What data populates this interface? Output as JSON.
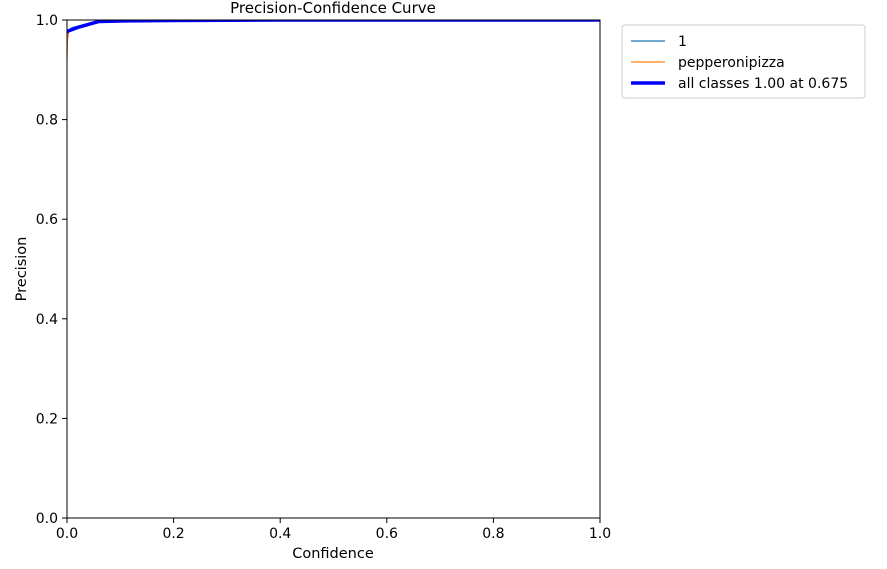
{
  "chart_data": {
    "type": "line",
    "title": "Precision-Confidence Curve",
    "xlabel": "Confidence",
    "ylabel": "Precision",
    "xlim": [
      0.0,
      1.0
    ],
    "ylim": [
      0.0,
      1.0
    ],
    "xticks": [
      "0.0",
      "0.2",
      "0.4",
      "0.6",
      "0.8",
      "1.0"
    ],
    "yticks": [
      "0.0",
      "0.2",
      "0.4",
      "0.6",
      "0.8",
      "1.0"
    ],
    "grid": false,
    "legend_position": "outside-top-right",
    "series": [
      {
        "name": "1",
        "color": "#1f77b4",
        "x": [
          0.0,
          0.002,
          0.01,
          0.05,
          0.06,
          0.1,
          0.2,
          0.4,
          0.6,
          0.8,
          1.0
        ],
        "y": [
          0.97,
          0.98,
          0.985,
          0.995,
          1.0,
          1.0,
          1.0,
          1.0,
          1.0,
          1.0,
          1.0
        ]
      },
      {
        "name": "pepperonipizza",
        "color": "#ff7f0e",
        "x": [
          0.0,
          0.001,
          0.003,
          0.006,
          0.01,
          0.05,
          0.06,
          0.1,
          0.2,
          0.4,
          0.6,
          0.8,
          1.0
        ],
        "y": [
          0.92,
          0.96,
          0.975,
          0.98,
          0.982,
          0.995,
          1.0,
          1.0,
          1.0,
          1.0,
          1.0,
          1.0,
          1.0
        ]
      },
      {
        "name": "all classes 1.00 at 0.675",
        "color": "#0000ff",
        "x": [
          0.0,
          0.01,
          0.02,
          0.05,
          0.06,
          0.1,
          0.2,
          0.4,
          0.6,
          0.675,
          0.8,
          1.0
        ],
        "y": [
          0.977,
          0.981,
          0.985,
          0.994,
          0.997,
          0.998,
          0.999,
          1.0,
          1.0,
          1.0,
          1.0,
          1.0
        ]
      }
    ]
  }
}
